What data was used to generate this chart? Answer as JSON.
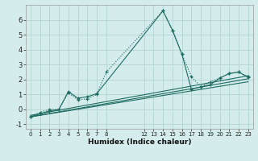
{
  "xlabel": "Humidex (Indice chaleur)",
  "bg_color": "#d4edec",
  "grid_color": "#b8d8d6",
  "line_color": "#1e6b60",
  "xlim": [
    -0.5,
    23.5
  ],
  "ylim": [
    -1.3,
    7.0
  ],
  "yticks": [
    -1,
    0,
    1,
    2,
    3,
    4,
    5,
    6
  ],
  "xticks": [
    0,
    1,
    2,
    3,
    4,
    5,
    6,
    7,
    8,
    12,
    13,
    14,
    15,
    16,
    17,
    18,
    19,
    20,
    21,
    22,
    23
  ],
  "series": [
    {
      "x": [
        0,
        1,
        2,
        3,
        4,
        5,
        6,
        7,
        8,
        14,
        15,
        16,
        17,
        18,
        19,
        20,
        21,
        22,
        23
      ],
      "y": [
        -0.5,
        -0.2,
        0.0,
        0.0,
        1.1,
        0.65,
        0.7,
        1.0,
        2.5,
        6.6,
        5.3,
        3.7,
        2.2,
        1.5,
        1.85,
        2.1,
        2.4,
        2.5,
        2.2
      ],
      "linestyle": "dotted",
      "marker": true
    },
    {
      "x": [
        0,
        1,
        2,
        3,
        4,
        5,
        6,
        7,
        14,
        15,
        16,
        17,
        18,
        19,
        20,
        21,
        22,
        23
      ],
      "y": [
        -0.5,
        -0.3,
        -0.1,
        0.0,
        1.2,
        0.75,
        0.85,
        1.05,
        6.6,
        5.3,
        3.7,
        1.35,
        1.5,
        1.65,
        2.1,
        2.4,
        2.5,
        2.15
      ],
      "linestyle": "solid",
      "marker": true
    },
    {
      "x": [
        0,
        23
      ],
      "y": [
        -0.4,
        2.25
      ],
      "linestyle": "solid",
      "marker": false
    },
    {
      "x": [
        0,
        23
      ],
      "y": [
        -0.5,
        2.05
      ],
      "linestyle": "solid",
      "marker": false
    },
    {
      "x": [
        0,
        23
      ],
      "y": [
        -0.5,
        1.85
      ],
      "linestyle": "solid",
      "marker": false
    }
  ]
}
